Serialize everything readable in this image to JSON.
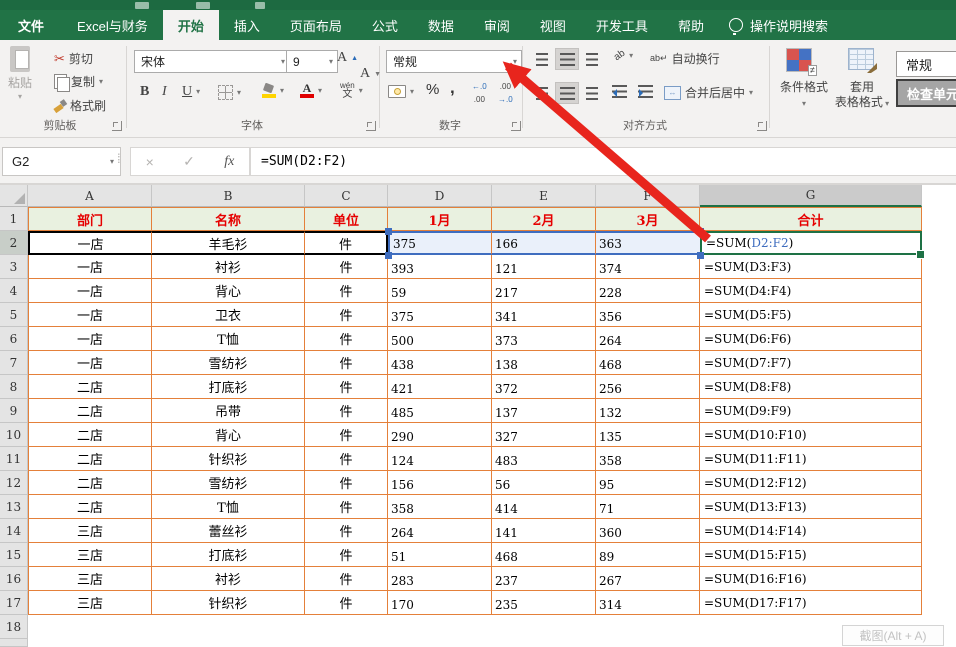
{
  "tabs": {
    "file": "文件",
    "items": [
      "Excel与财务",
      "开始",
      "插入",
      "页面布局",
      "公式",
      "数据",
      "审阅",
      "视图",
      "开发工具",
      "帮助"
    ],
    "active_index": 1,
    "search_label": "操作说明搜索"
  },
  "ribbon": {
    "clipboard": {
      "paste": "粘贴",
      "cut": "剪切",
      "copy": "复制",
      "format_painter": "格式刷",
      "group_label": "剪贴板"
    },
    "font": {
      "family": "宋体",
      "size": "9",
      "grow": "A",
      "shrink": "A",
      "bold": "B",
      "italic": "I",
      "underline": "U",
      "color_letter": "A",
      "phonetic_top": "wén",
      "phonetic_bottom": "文",
      "group_label": "字体"
    },
    "number": {
      "format": "常规",
      "percent": "%",
      "comma": ",",
      "inc_top": "←.0",
      "inc_bottom": ".00",
      "dec_top": ".00",
      "dec_bottom": "→.0",
      "group_label": "数字"
    },
    "alignment": {
      "orientation_icon": "ab",
      "wrap_icon": "ab↵",
      "wrap_text": "自动换行",
      "merge_icon": "↔",
      "merge_center": "合并后居中",
      "group_label": "对齐方式"
    },
    "styles": {
      "conditional": "条件格式",
      "format_table_line1": "套用",
      "format_table_line2": "表格格式",
      "cell_style_1": "常规",
      "cell_style_2": "检查单元"
    }
  },
  "formula_bar": {
    "name_box": "G2",
    "cancel": "×",
    "enter": "✓",
    "fx": "fx",
    "formula": "=SUM(D2:F2)"
  },
  "grid": {
    "columns": [
      "A",
      "B",
      "C",
      "D",
      "E",
      "F",
      "G"
    ],
    "header_row": {
      "number": "1",
      "cells": [
        "部门",
        "名称",
        "单位",
        "1月",
        "2月",
        "3月",
        "合计"
      ]
    },
    "rows": [
      {
        "n": "2",
        "dept": "一店",
        "name": "羊毛衫",
        "unit": "件",
        "m1": "375",
        "m2": "166",
        "m3": "363",
        "total": "=SUM(D2:F2)"
      },
      {
        "n": "3",
        "dept": "一店",
        "name": "衬衫",
        "unit": "件",
        "m1": "393",
        "m2": "121",
        "m3": "374",
        "total": "=SUM(D3:F3)"
      },
      {
        "n": "4",
        "dept": "一店",
        "name": "背心",
        "unit": "件",
        "m1": "59",
        "m2": "217",
        "m3": "228",
        "total": "=SUM(D4:F4)"
      },
      {
        "n": "5",
        "dept": "一店",
        "name": "卫衣",
        "unit": "件",
        "m1": "375",
        "m2": "341",
        "m3": "356",
        "total": "=SUM(D5:F5)"
      },
      {
        "n": "6",
        "dept": "一店",
        "name": "T恤",
        "unit": "件",
        "m1": "500",
        "m2": "373",
        "m3": "264",
        "total": "=SUM(D6:F6)"
      },
      {
        "n": "7",
        "dept": "一店",
        "name": "雪纺衫",
        "unit": "件",
        "m1": "438",
        "m2": "138",
        "m3": "468",
        "total": "=SUM(D7:F7)"
      },
      {
        "n": "8",
        "dept": "二店",
        "name": "打底衫",
        "unit": "件",
        "m1": "421",
        "m2": "372",
        "m3": "256",
        "total": "=SUM(D8:F8)"
      },
      {
        "n": "9",
        "dept": "二店",
        "name": "吊带",
        "unit": "件",
        "m1": "485",
        "m2": "137",
        "m3": "132",
        "total": "=SUM(D9:F9)"
      },
      {
        "n": "10",
        "dept": "二店",
        "name": "背心",
        "unit": "件",
        "m1": "290",
        "m2": "327",
        "m3": "135",
        "total": "=SUM(D10:F10)"
      },
      {
        "n": "11",
        "dept": "二店",
        "name": "针织衫",
        "unit": "件",
        "m1": "124",
        "m2": "483",
        "m3": "358",
        "total": "=SUM(D11:F11)"
      },
      {
        "n": "12",
        "dept": "二店",
        "name": "雪纺衫",
        "unit": "件",
        "m1": "156",
        "m2": "56",
        "m3": "95",
        "total": "=SUM(D12:F12)"
      },
      {
        "n": "13",
        "dept": "二店",
        "name": "T恤",
        "unit": "件",
        "m1": "358",
        "m2": "414",
        "m3": "71",
        "total": "=SUM(D13:F13)"
      },
      {
        "n": "14",
        "dept": "三店",
        "name": "蕾丝衫",
        "unit": "件",
        "m1": "264",
        "m2": "141",
        "m3": "360",
        "total": "=SUM(D14:F14)"
      },
      {
        "n": "15",
        "dept": "三店",
        "name": "打底衫",
        "unit": "件",
        "m1": "51",
        "m2": "468",
        "m3": "89",
        "total": "=SUM(D15:F15)"
      },
      {
        "n": "16",
        "dept": "三店",
        "name": "衬衫",
        "unit": "件",
        "m1": "283",
        "m2": "237",
        "m3": "267",
        "total": "=SUM(D16:F16)"
      },
      {
        "n": "17",
        "dept": "三店",
        "name": "针织衫",
        "unit": "件",
        "m1": "170",
        "m2": "235",
        "m3": "314",
        "total": "=SUM(D17:F17)"
      }
    ],
    "trailing_row_number": "18",
    "active_cell": {
      "ref": "G2",
      "prefix": "=SUM(",
      "range": "D2:F2",
      "suffix": ")"
    }
  },
  "watermark": "截图(Alt + A)",
  "colors": {
    "excel_green": "#217346",
    "table_border": "#E4803A",
    "header_fill": "#E9F1E0",
    "header_text": "#E60000",
    "selection_blue": "#3F6DBF",
    "selection_fill": "#EAF0FA",
    "active_border": "#1E7145",
    "arrow_red": "#E8251D"
  }
}
